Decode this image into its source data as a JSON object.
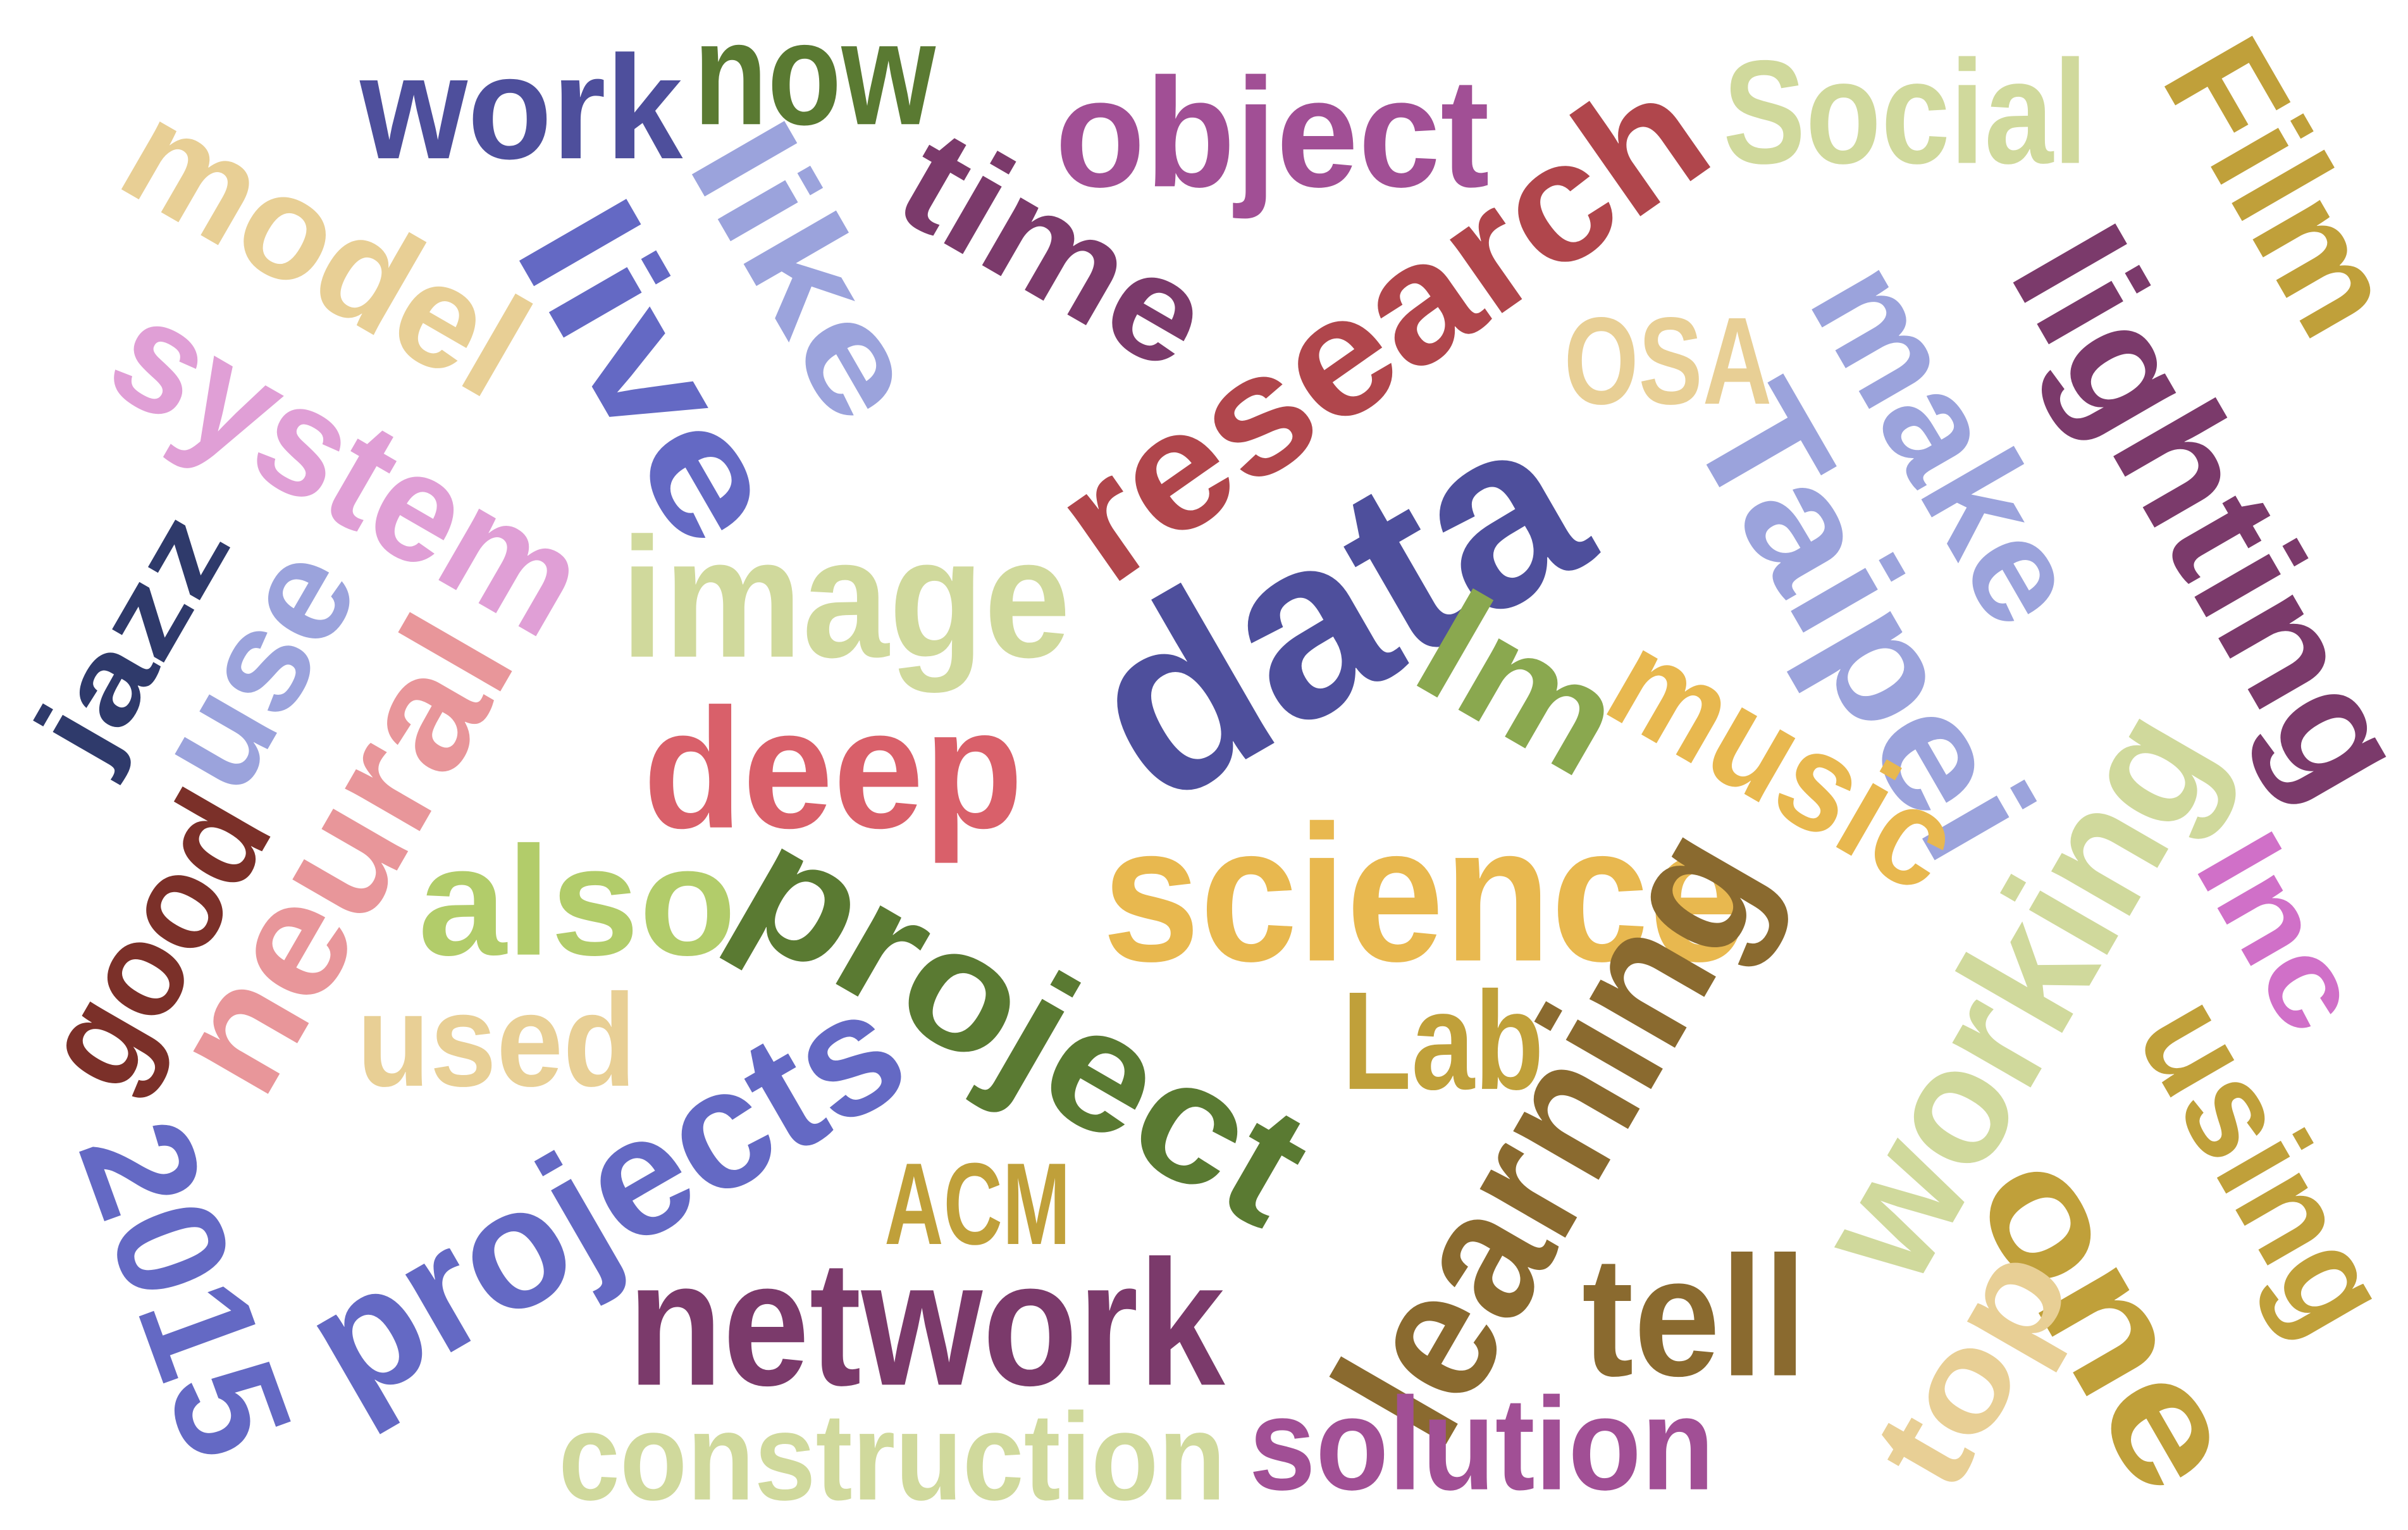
{
  "words": [
    {
      "text": "work",
      "color": "#4e4f9c"
    },
    {
      "text": "now",
      "color": "#5a7a32"
    },
    {
      "text": "model",
      "color": "#e8cf95"
    },
    {
      "text": "live",
      "color": "#6469c4"
    },
    {
      "text": "like",
      "color": "#9ba3dc"
    },
    {
      "text": "time",
      "color": "#7b3a6b"
    },
    {
      "text": "object",
      "color": "#a14f95"
    },
    {
      "text": "research",
      "color": "#b0464c"
    },
    {
      "text": "Social",
      "color": "#d0d99c"
    },
    {
      "text": "Film",
      "color": "#c0a03a"
    },
    {
      "text": "OSA",
      "color": "#e8cf95"
    },
    {
      "text": "make",
      "color": "#9ba3dc"
    },
    {
      "text": "lighting",
      "color": "#7b3a6b"
    },
    {
      "text": "system",
      "color": "#e09fd6"
    },
    {
      "text": "jazz",
      "color": "#2f3a6b"
    },
    {
      "text": "use",
      "color": "#9ba3dc"
    },
    {
      "text": "neural",
      "color": "#e8969a"
    },
    {
      "text": "good",
      "color": "#7b3029"
    },
    {
      "text": "image",
      "color": "#d0d99c"
    },
    {
      "text": "data",
      "color": "#4e4f9c"
    },
    {
      "text": "Taipei",
      "color": "#9ba3dc"
    },
    {
      "text": "lm",
      "color": "#8aa84f"
    },
    {
      "text": "music",
      "color": "#e8b84f"
    },
    {
      "text": "deep",
      "color": "#d9606a"
    },
    {
      "text": "also",
      "color": "#b2cc6a"
    },
    {
      "text": "science",
      "color": "#e8b84f"
    },
    {
      "text": "project",
      "color": "#5a7a32"
    },
    {
      "text": "working",
      "color": "#d0d99c"
    },
    {
      "text": "Inc",
      "color": "#d070c8"
    },
    {
      "text": "used",
      "color": "#e8cf95"
    },
    {
      "text": "Lab",
      "color": "#c0a03a"
    },
    {
      "text": "learning",
      "color": "#8a6a2f"
    },
    {
      "text": "using",
      "color": "#c0a03a"
    },
    {
      "text": "projects",
      "color": "#6469c4"
    },
    {
      "text": "2015",
      "color": "#6469c4"
    },
    {
      "text": "ACM",
      "color": "#c0a03a"
    },
    {
      "text": "one",
      "color": "#c0a03a"
    },
    {
      "text": "top",
      "color": "#e8cf95"
    },
    {
      "text": "network",
      "color": "#7b3a6b"
    },
    {
      "text": "tell",
      "color": "#8a6a2f"
    },
    {
      "text": "construction",
      "color": "#d0d99c"
    },
    {
      "text": "solution",
      "color": "#a14f95"
    }
  ]
}
